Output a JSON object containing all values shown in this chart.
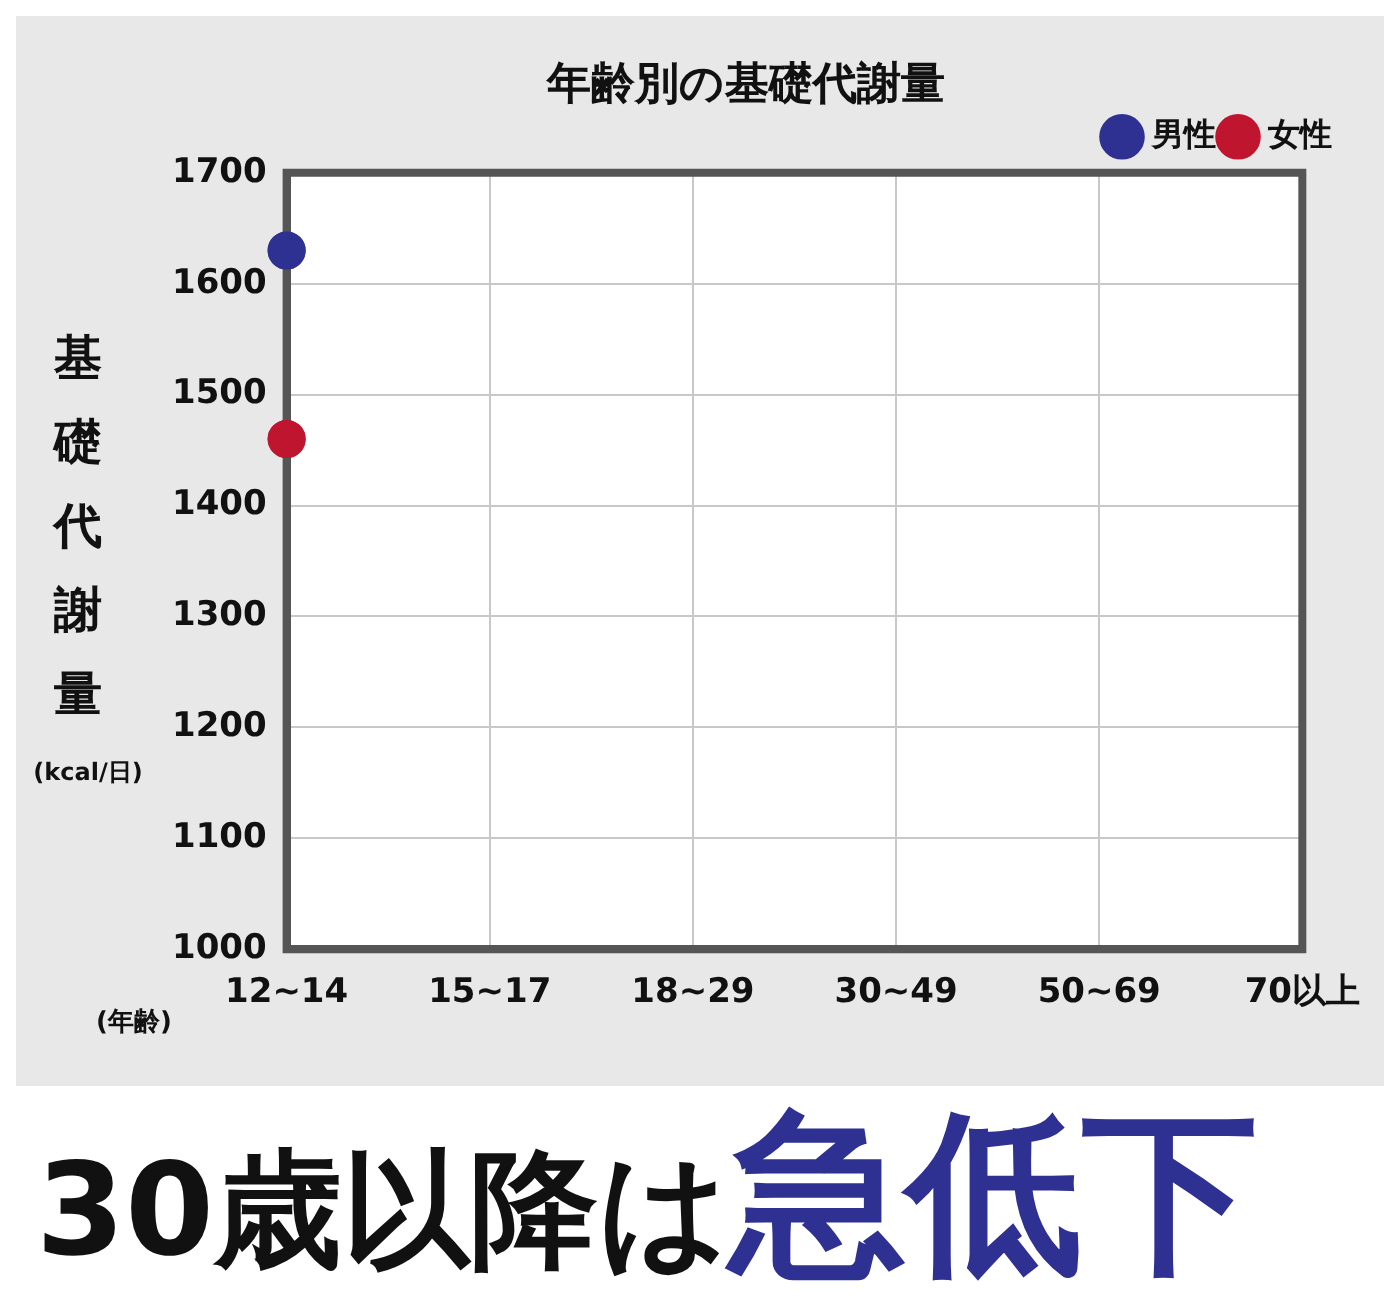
{
  "chart_data": {
    "type": "line",
    "title": "年齢別の基礎代謝量",
    "ylabel": "基礎代謝量",
    "xlabel": "(年齢)",
    "annotations": [
      "(kcal/日)",
      "30歳以降は",
      "急低下"
    ],
    "categories": [
      "12~14",
      "15~17",
      "18~29",
      "30~49",
      "50~69",
      "70以上"
    ],
    "series": [
      {
        "name": "男性",
        "color": "#2e3192",
        "values": [
          1630,
          null,
          null,
          null,
          null,
          null
        ]
      },
      {
        "name": "女性",
        "color": "#c0152f",
        "values": [
          1460,
          null,
          null,
          null,
          null,
          null
        ]
      }
    ],
    "ylim": [
      1000,
      1700
    ],
    "yticks": [
      1000,
      1100,
      1200,
      1300,
      1400,
      1500,
      1600,
      1700
    ],
    "grid": true,
    "legend": "top right",
    "marker": "circle"
  }
}
